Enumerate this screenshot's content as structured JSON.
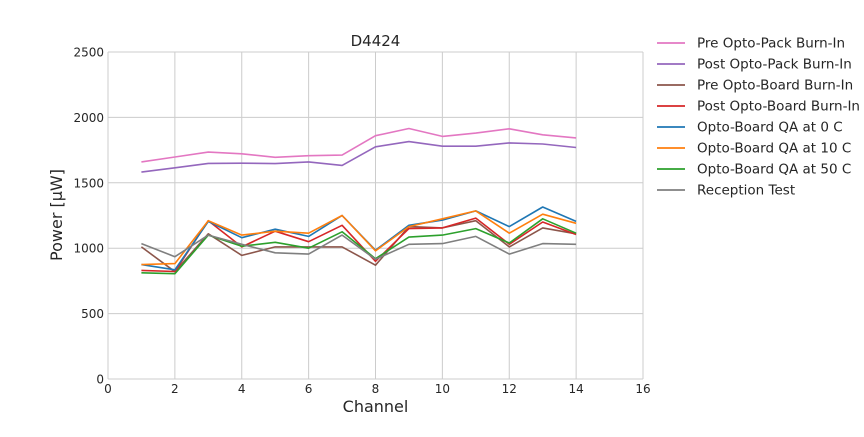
{
  "chart_data": {
    "type": "line",
    "title": "D4424",
    "xlabel": "Channel",
    "ylabel": "Power [μW]",
    "xlim": [
      0,
      16
    ],
    "ylim": [
      0,
      2500
    ],
    "xticks": [
      0,
      2,
      4,
      6,
      8,
      10,
      12,
      14,
      16
    ],
    "yticks": [
      0,
      500,
      1000,
      1500,
      2000,
      2500
    ],
    "grid": true,
    "legend_position": "outside-right",
    "x": [
      1,
      2,
      3,
      4,
      5,
      6,
      7,
      8,
      9,
      10,
      11,
      12,
      13,
      14
    ],
    "series": [
      {
        "name": "Pre Opto-Pack Burn-In",
        "color": "#e377c2",
        "values": [
          1660,
          1697,
          1735,
          1722,
          1695,
          1707,
          1712,
          1860,
          1915,
          1855,
          1880,
          1913,
          1867,
          1843
        ]
      },
      {
        "name": "Post Opto-Pack Burn-In",
        "color": "#9467bd",
        "values": [
          1582,
          1615,
          1648,
          1650,
          1647,
          1660,
          1633,
          1775,
          1815,
          1780,
          1780,
          1805,
          1797,
          1770
        ]
      },
      {
        "name": "Pre Opto-Board Burn-In",
        "color": "#8c564b",
        "values": [
          1010,
          820,
          1110,
          945,
          1010,
          1010,
          1010,
          870,
          1165,
          1155,
          1210,
          1010,
          1155,
          1110
        ]
      },
      {
        "name": "Post Opto-Board Burn-In",
        "color": "#d62728",
        "values": [
          830,
          822,
          1210,
          1010,
          1130,
          1050,
          1175,
          900,
          1150,
          1155,
          1230,
          1030,
          1200,
          1105
        ]
      },
      {
        "name": "Opto-Board QA at 0 C",
        "color": "#1f77b4",
        "values": [
          875,
          835,
          1205,
          1080,
          1145,
          1090,
          1250,
          985,
          1175,
          1215,
          1285,
          1165,
          1315,
          1205
        ]
      },
      {
        "name": "Opto-Board QA at 10 C",
        "color": "#ff7f0e",
        "values": [
          875,
          882,
          1210,
          1100,
          1130,
          1115,
          1250,
          980,
          1165,
          1225,
          1285,
          1115,
          1260,
          1190
        ]
      },
      {
        "name": "Opto-Board QA at 50 C",
        "color": "#2ca02c",
        "values": [
          812,
          805,
          1100,
          1015,
          1045,
          1000,
          1125,
          920,
          1085,
          1100,
          1150,
          1040,
          1225,
          1115
        ]
      },
      {
        "name": "Reception Test",
        "color": "#7f7f7f",
        "values": [
          1035,
          935,
          1100,
          1030,
          965,
          955,
          1100,
          915,
          1030,
          1035,
          1090,
          955,
          1035,
          1030
        ]
      }
    ]
  }
}
